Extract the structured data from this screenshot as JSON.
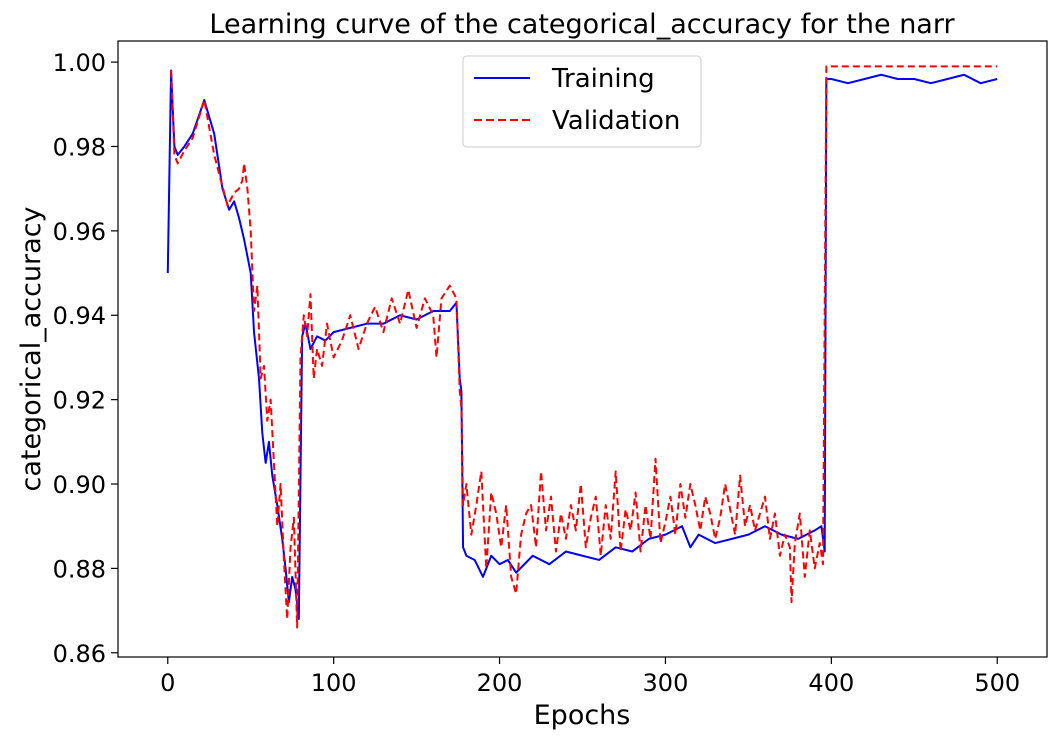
{
  "chart_data": {
    "type": "line",
    "title": "Learning curve of the categorical_accuracy for the narr",
    "xlabel": "Epochs",
    "ylabel": "categorical_accuracy",
    "xlim": [
      -30,
      530
    ],
    "ylim": [
      0.859,
      1.005
    ],
    "x_ticks": [
      0,
      100,
      200,
      300,
      400,
      500
    ],
    "y_ticks": [
      0.86,
      0.88,
      0.9,
      0.92,
      0.94,
      0.96,
      0.98,
      1.0
    ],
    "x_tick_labels": [
      "0",
      "100",
      "200",
      "300",
      "400",
      "500"
    ],
    "y_tick_labels": [
      "0.86",
      "0.88",
      "0.90",
      "0.92",
      "0.94",
      "0.96",
      "0.98",
      "1.00"
    ],
    "grid": false,
    "legend_position": "top-center",
    "series": [
      {
        "name": "Training",
        "color": "#0000ff",
        "style": "solid",
        "points": [
          [
            0,
            0.95
          ],
          [
            2,
            0.998
          ],
          [
            4,
            0.98
          ],
          [
            6,
            0.978
          ],
          [
            10,
            0.98
          ],
          [
            15,
            0.983
          ],
          [
            22,
            0.991
          ],
          [
            28,
            0.983
          ],
          [
            33,
            0.97
          ],
          [
            37,
            0.965
          ],
          [
            40,
            0.967
          ],
          [
            43,
            0.963
          ],
          [
            46,
            0.958
          ],
          [
            50,
            0.95
          ],
          [
            52,
            0.936
          ],
          [
            55,
            0.925
          ],
          [
            57,
            0.912
          ],
          [
            59,
            0.905
          ],
          [
            61,
            0.91
          ],
          [
            63,
            0.902
          ],
          [
            66,
            0.895
          ],
          [
            69,
            0.887
          ],
          [
            71,
            0.88
          ],
          [
            73,
            0.872
          ],
          [
            75,
            0.878
          ],
          [
            77,
            0.875
          ],
          [
            79,
            0.868
          ],
          [
            81,
            0.935
          ],
          [
            83,
            0.938
          ],
          [
            86,
            0.932
          ],
          [
            90,
            0.935
          ],
          [
            95,
            0.934
          ],
          [
            100,
            0.936
          ],
          [
            110,
            0.937
          ],
          [
            120,
            0.938
          ],
          [
            130,
            0.938
          ],
          [
            140,
            0.94
          ],
          [
            150,
            0.939
          ],
          [
            160,
            0.941
          ],
          [
            170,
            0.941
          ],
          [
            174,
            0.943
          ],
          [
            176,
            0.925
          ],
          [
            177,
            0.922
          ],
          [
            178,
            0.885
          ],
          [
            180,
            0.883
          ],
          [
            185,
            0.882
          ],
          [
            190,
            0.878
          ],
          [
            195,
            0.883
          ],
          [
            200,
            0.881
          ],
          [
            205,
            0.882
          ],
          [
            210,
            0.879
          ],
          [
            220,
            0.883
          ],
          [
            230,
            0.881
          ],
          [
            240,
            0.884
          ],
          [
            250,
            0.883
          ],
          [
            260,
            0.882
          ],
          [
            270,
            0.885
          ],
          [
            280,
            0.884
          ],
          [
            290,
            0.887
          ],
          [
            300,
            0.888
          ],
          [
            310,
            0.89
          ],
          [
            315,
            0.885
          ],
          [
            320,
            0.888
          ],
          [
            330,
            0.886
          ],
          [
            340,
            0.887
          ],
          [
            350,
            0.888
          ],
          [
            360,
            0.89
          ],
          [
            370,
            0.888
          ],
          [
            380,
            0.887
          ],
          [
            390,
            0.889
          ],
          [
            394,
            0.89
          ],
          [
            396,
            0.884
          ],
          [
            397,
            0.996
          ],
          [
            400,
            0.996
          ],
          [
            410,
            0.995
          ],
          [
            420,
            0.996
          ],
          [
            430,
            0.997
          ],
          [
            440,
            0.996
          ],
          [
            450,
            0.996
          ],
          [
            460,
            0.995
          ],
          [
            470,
            0.996
          ],
          [
            480,
            0.997
          ],
          [
            490,
            0.995
          ],
          [
            500,
            0.996
          ]
        ]
      },
      {
        "name": "Validation",
        "color": "#ff0000",
        "style": "dashed",
        "points": [
          [
            2,
            0.998
          ],
          [
            4,
            0.978
          ],
          [
            6,
            0.976
          ],
          [
            10,
            0.979
          ],
          [
            15,
            0.982
          ],
          [
            22,
            0.991
          ],
          [
            28,
            0.978
          ],
          [
            32,
            0.972
          ],
          [
            36,
            0.966
          ],
          [
            40,
            0.969
          ],
          [
            43,
            0.97
          ],
          [
            45,
            0.972
          ],
          [
            46,
            0.976
          ],
          [
            48,
            0.97
          ],
          [
            50,
            0.96
          ],
          [
            52,
            0.941
          ],
          [
            54,
            0.947
          ],
          [
            56,
            0.925
          ],
          [
            58,
            0.928
          ],
          [
            60,
            0.915
          ],
          [
            62,
            0.92
          ],
          [
            64,
            0.905
          ],
          [
            66,
            0.89
          ],
          [
            68,
            0.9
          ],
          [
            70,
            0.882
          ],
          [
            72,
            0.868
          ],
          [
            74,
            0.885
          ],
          [
            76,
            0.892
          ],
          [
            78,
            0.866
          ],
          [
            80,
            0.93
          ],
          [
            82,
            0.94
          ],
          [
            84,
            0.935
          ],
          [
            86,
            0.945
          ],
          [
            88,
            0.925
          ],
          [
            90,
            0.932
          ],
          [
            93,
            0.928
          ],
          [
            96,
            0.938
          ],
          [
            100,
            0.93
          ],
          [
            105,
            0.934
          ],
          [
            110,
            0.94
          ],
          [
            115,
            0.932
          ],
          [
            120,
            0.938
          ],
          [
            125,
            0.942
          ],
          [
            130,
            0.936
          ],
          [
            135,
            0.944
          ],
          [
            140,
            0.938
          ],
          [
            145,
            0.946
          ],
          [
            150,
            0.937
          ],
          [
            155,
            0.944
          ],
          [
            160,
            0.94
          ],
          [
            162,
            0.93
          ],
          [
            165,
            0.944
          ],
          [
            170,
            0.947
          ],
          [
            174,
            0.944
          ],
          [
            176,
            0.922
          ],
          [
            177,
            0.918
          ],
          [
            178,
            0.895
          ],
          [
            180,
            0.9
          ],
          [
            183,
            0.888
          ],
          [
            186,
            0.895
          ],
          [
            189,
            0.903
          ],
          [
            192,
            0.88
          ],
          [
            195,
            0.898
          ],
          [
            198,
            0.893
          ],
          [
            201,
            0.885
          ],
          [
            204,
            0.895
          ],
          [
            207,
            0.878
          ],
          [
            210,
            0.874
          ],
          [
            213,
            0.888
          ],
          [
            216,
            0.893
          ],
          [
            219,
            0.895
          ],
          [
            222,
            0.885
          ],
          [
            225,
            0.903
          ],
          [
            228,
            0.889
          ],
          [
            231,
            0.897
          ],
          [
            234,
            0.884
          ],
          [
            237,
            0.893
          ],
          [
            240,
            0.887
          ],
          [
            243,
            0.895
          ],
          [
            246,
            0.889
          ],
          [
            249,
            0.9
          ],
          [
            252,
            0.885
          ],
          [
            255,
            0.892
          ],
          [
            258,
            0.897
          ],
          [
            261,
            0.883
          ],
          [
            264,
            0.895
          ],
          [
            267,
            0.887
          ],
          [
            270,
            0.903
          ],
          [
            273,
            0.884
          ],
          [
            276,
            0.894
          ],
          [
            279,
            0.889
          ],
          [
            282,
            0.898
          ],
          [
            285,
            0.884
          ],
          [
            288,
            0.895
          ],
          [
            291,
            0.887
          ],
          [
            294,
            0.906
          ],
          [
            297,
            0.886
          ],
          [
            300,
            0.891
          ],
          [
            303,
            0.897
          ],
          [
            306,
            0.888
          ],
          [
            309,
            0.9
          ],
          [
            312,
            0.892
          ],
          [
            315,
            0.9
          ],
          [
            318,
            0.895
          ],
          [
            321,
            0.889
          ],
          [
            324,
            0.897
          ],
          [
            327,
            0.893
          ],
          [
            330,
            0.887
          ],
          [
            333,
            0.892
          ],
          [
            336,
            0.9
          ],
          [
            339,
            0.894
          ],
          [
            342,
            0.888
          ],
          [
            345,
            0.902
          ],
          [
            348,
            0.89
          ],
          [
            351,
            0.895
          ],
          [
            354,
            0.889
          ],
          [
            357,
            0.893
          ],
          [
            360,
            0.897
          ],
          [
            363,
            0.887
          ],
          [
            366,
            0.893
          ],
          [
            369,
            0.883
          ],
          [
            372,
            0.888
          ],
          [
            375,
            0.885
          ],
          [
            376,
            0.872
          ],
          [
            378,
            0.886
          ],
          [
            381,
            0.893
          ],
          [
            384,
            0.878
          ],
          [
            387,
            0.889
          ],
          [
            390,
            0.88
          ],
          [
            393,
            0.886
          ],
          [
            395,
            0.881
          ],
          [
            397,
            0.999
          ],
          [
            400,
            0.999
          ],
          [
            420,
            0.999
          ],
          [
            440,
            0.999
          ],
          [
            460,
            0.999
          ],
          [
            480,
            0.999
          ],
          [
            500,
            0.999
          ]
        ]
      }
    ]
  }
}
